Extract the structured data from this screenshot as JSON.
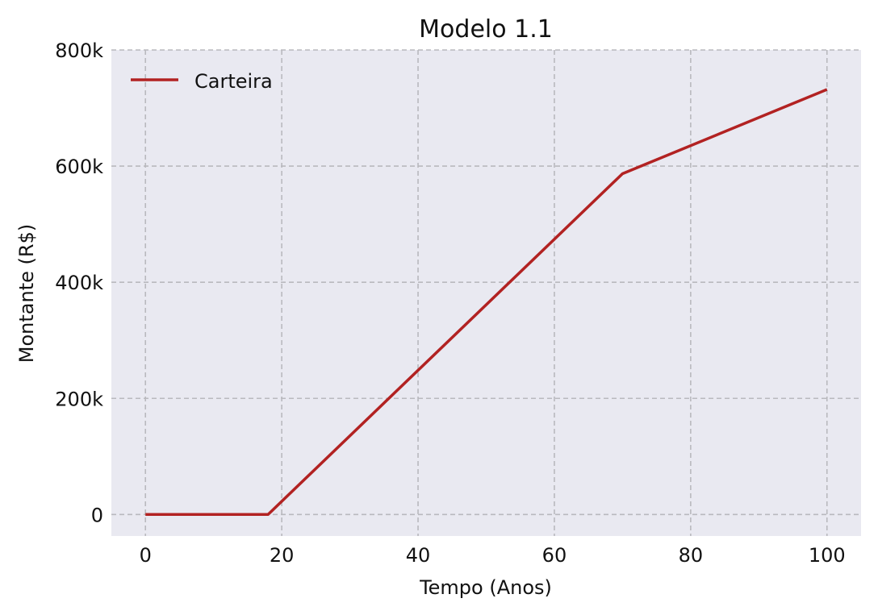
{
  "chart_data": {
    "type": "line",
    "title": "Modelo 1.1",
    "xlabel": "Tempo (Anos)",
    "ylabel": "Montante (R$)",
    "xlim": [
      -5,
      105
    ],
    "ylim": [
      -37000,
      800000
    ],
    "x_ticks": [
      0,
      20,
      40,
      60,
      80,
      100
    ],
    "x_tick_labels": [
      "0",
      "20",
      "40",
      "60",
      "80",
      "100"
    ],
    "y_ticks": [
      0,
      200000,
      400000,
      600000,
      800000
    ],
    "y_tick_labels": [
      "0",
      "200k",
      "400k",
      "600k",
      "800k"
    ],
    "grid": true,
    "grid_style": "dashed",
    "legend_position": "upper left",
    "plot_background": "#e9e9f1",
    "series": [
      {
        "name": "Carteira",
        "color": "#b22222",
        "x": [
          0,
          18,
          70,
          100
        ],
        "y": [
          0,
          0,
          587000,
          732000
        ]
      }
    ]
  }
}
